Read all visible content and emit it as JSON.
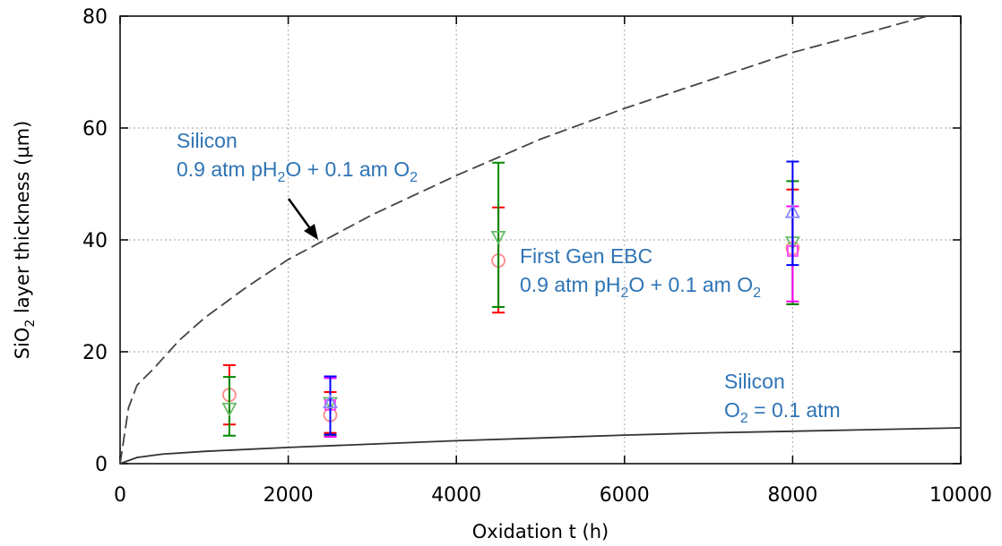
{
  "chart_data": {
    "type": "scatter",
    "xlabel": "Oxidation t (h)",
    "ylabel": {
      "prefix": "SiO",
      "sub": "2",
      "suffix": " layer thickness (µm)"
    },
    "xlim": [
      0,
      10000
    ],
    "ylim": [
      0,
      80
    ],
    "xticks": [
      0,
      2000,
      4000,
      6000,
      8000,
      10000
    ],
    "yticks": [
      0,
      20,
      40,
      60,
      80
    ],
    "grid": true,
    "curves": [
      {
        "id": "silicon-wet",
        "style": "dashed",
        "color": "#444444",
        "x": [
          0,
          100,
          200,
          400,
          700,
          1000,
          1500,
          2000,
          2500,
          3000,
          4000,
          5000,
          6000,
          7000,
          8000,
          9000,
          9600
        ],
        "y": [
          0,
          10,
          14,
          17,
          22,
          26,
          31.5,
          36.5,
          40.5,
          44.5,
          51.5,
          58,
          63.5,
          68.5,
          73.5,
          77.5,
          80
        ]
      },
      {
        "id": "silicon-dry",
        "style": "solid",
        "color": "#333333",
        "x": [
          0,
          200,
          500,
          1000,
          2000,
          3000,
          4000,
          5000,
          6000,
          7000,
          8000,
          9000,
          10000
        ],
        "y": [
          0,
          1.1,
          1.7,
          2.2,
          2.9,
          3.5,
          4.1,
          4.6,
          5.1,
          5.5,
          5.8,
          6.1,
          6.4
        ]
      }
    ],
    "points": [
      {
        "x": 1300,
        "y": 12.3,
        "err": [
          7,
          17.6
        ],
        "marker": "circle",
        "color": "#ff8888",
        "barColor": "#ff0000"
      },
      {
        "x": 1300,
        "y": 9.8,
        "err": [
          5,
          15.5
        ],
        "marker": "triangle-down",
        "color": "#66bb66",
        "barColor": "#008800"
      },
      {
        "x": 2500,
        "y": 8.7,
        "err": [
          5.5,
          12.8
        ],
        "marker": "circle",
        "color": "#ff8888",
        "barColor": "#ff0000"
      },
      {
        "x": 2500,
        "y": 10.8,
        "err": [
          5,
          15.5
        ],
        "marker": "triangle-down",
        "color": "#66bb66",
        "barColor": "#008800"
      },
      {
        "x": 2500,
        "y": 10.5,
        "err": [
          4.8,
          15.3
        ],
        "marker": "square",
        "color": "#ff44ff",
        "barColor": "#ff00ff"
      },
      {
        "x": 2500,
        "y": 11,
        "err": [
          5.2,
          15.6
        ],
        "marker": "triangle-up",
        "color": "#8888ff",
        "barColor": "#0000ff"
      },
      {
        "x": 4500,
        "y": 36.3,
        "err": [
          27,
          45.8
        ],
        "marker": "circle",
        "color": "#ff8888",
        "barColor": "#ff0000"
      },
      {
        "x": 4500,
        "y": 40.5,
        "err": [
          28,
          53.8
        ],
        "marker": "triangle-down",
        "color": "#66bb66",
        "barColor": "#008800"
      },
      {
        "x": 8000,
        "y": 38.5,
        "err": [
          28.5,
          49
        ],
        "marker": "circle",
        "color": "#ff8888",
        "barColor": "#ff0000"
      },
      {
        "x": 8000,
        "y": 39.5,
        "err": [
          28.5,
          50.5
        ],
        "marker": "triangle-down",
        "color": "#66bb66",
        "barColor": "#008800"
      },
      {
        "x": 8000,
        "y": 38,
        "err": [
          29,
          46
        ],
        "marker": "square",
        "color": "#ff44ff",
        "barColor": "#ff00ff"
      },
      {
        "x": 8000,
        "y": 45,
        "err": [
          35.5,
          54
        ],
        "marker": "triangle-up",
        "color": "#8888ff",
        "barColor": "#0000ff"
      }
    ],
    "annotations": [
      {
        "id": "anno-silicon-wet",
        "line1": "Silicon",
        "line2": {
          "a": "0.9 atm pH",
          "b": "2",
          "c": "O + 0.1 am O",
          "d": "2"
        }
      },
      {
        "id": "anno-first-gen-ebc",
        "line1": "First Gen EBC",
        "line2": {
          "a": "0.9 atm pH",
          "b": "2",
          "c": "O + 0.1 am O",
          "d": "2"
        }
      },
      {
        "id": "anno-silicon-dry",
        "line1": "Silicon",
        "line2": {
          "a": "O",
          "b": "2",
          "c": " = 0.1 atm",
          "d": ""
        }
      }
    ]
  }
}
